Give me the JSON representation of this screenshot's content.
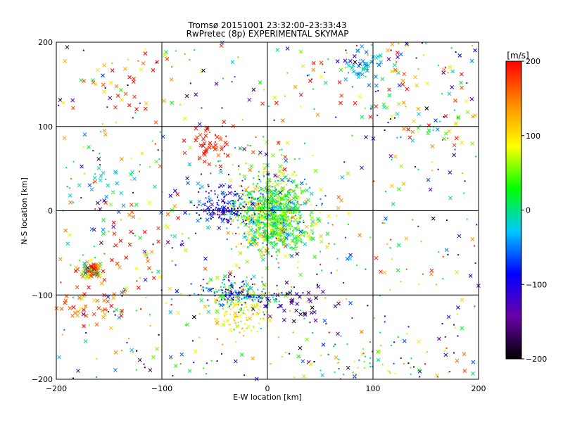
{
  "chart_data": {
    "type": "scatter",
    "title": "Tromsø 20151001 23:32:00–23:33:43",
    "subtitle": "RwPretec (8p) EXPERIMENTAL SKYMAP",
    "xlabel": "E-W location [km]",
    "ylabel": "N-S location [km]",
    "xlim": [
      -200,
      200
    ],
    "ylim": [
      -200,
      200
    ],
    "x_ticks": [
      -200,
      -100,
      0,
      100,
      200
    ],
    "y_ticks": [
      -200,
      -100,
      0,
      100,
      200
    ],
    "x_tick_labels": [
      "−200",
      "−100",
      "0",
      "100",
      "200"
    ],
    "y_tick_labels": [
      "−200",
      "−100",
      "0",
      "100",
      "200"
    ],
    "grid": true,
    "colorbar": {
      "label": "[m/s]",
      "min": -200,
      "max": 200,
      "ticks": [
        200,
        100,
        0,
        -100,
        -200
      ],
      "tick_labels": [
        "200",
        "100",
        "0",
        "−100",
        "−200"
      ],
      "colors": [
        "#000000",
        "#6a00a8",
        "#0000ff",
        "#00c8ff",
        "#00ff00",
        "#ffff00",
        "#ff8c00",
        "#ff0000"
      ]
    },
    "clusters": [
      {
        "x": 5,
        "y": 0,
        "sx": 15,
        "sy": 22,
        "n": 900,
        "v": 30,
        "sv": 55,
        "marker": "dot"
      },
      {
        "x": 12,
        "y": -15,
        "sx": 22,
        "sy": 22,
        "n": 160,
        "v": 40,
        "sv": 45,
        "marker": "x"
      },
      {
        "x": -45,
        "y": 5,
        "sx": 15,
        "sy": 15,
        "n": 160,
        "v": -100,
        "sv": 40,
        "marker": "dot"
      },
      {
        "x": -30,
        "y": -97,
        "sx": 18,
        "sy": 8,
        "n": 220,
        "v": -40,
        "sv": 80,
        "marker": "dot"
      },
      {
        "x": -22,
        "y": -120,
        "sx": 15,
        "sy": 15,
        "n": 120,
        "v": 90,
        "sv": 30,
        "marker": "dot"
      },
      {
        "x": -167,
        "y": -70,
        "sx": 5,
        "sy": 5,
        "n": 110,
        "v": 120,
        "sv": 90,
        "marker": "x"
      },
      {
        "x": -170,
        "y": -110,
        "sx": 20,
        "sy": 12,
        "n": 45,
        "v": 170,
        "sv": 40,
        "marker": "x"
      },
      {
        "x": -55,
        "y": 80,
        "sx": 12,
        "sy": 12,
        "n": 40,
        "v": 190,
        "sv": 15,
        "marker": "x"
      },
      {
        "x": 95,
        "y": 175,
        "sx": 15,
        "sy": 10,
        "n": 50,
        "v": -40,
        "sv": 35,
        "marker": "x"
      },
      {
        "x": 165,
        "y": 110,
        "sx": 30,
        "sy": 15,
        "n": 40,
        "v": 80,
        "sv": 100,
        "marker": "x"
      },
      {
        "x": 30,
        "y": -110,
        "sx": 15,
        "sy": 12,
        "n": 35,
        "v": -150,
        "sv": 30,
        "marker": "x"
      },
      {
        "x": -160,
        "y": 30,
        "sx": 20,
        "sy": 15,
        "n": 25,
        "v": -20,
        "sv": 20,
        "marker": "x"
      },
      {
        "x": 95,
        "y": -180,
        "sx": 30,
        "sy": 15,
        "n": 45,
        "v": 30,
        "sv": 70,
        "marker": "dot"
      },
      {
        "x": 105,
        "y": 150,
        "sx": 50,
        "sy": 30,
        "n": 40,
        "v": 120,
        "sv": 100,
        "marker": "x"
      },
      {
        "x": -130,
        "y": 150,
        "sx": 30,
        "sy": 30,
        "n": 35,
        "v": 170,
        "sv": 50,
        "marker": "x"
      },
      {
        "x": -110,
        "y": -40,
        "sx": 25,
        "sy": 40,
        "n": 40,
        "v": 150,
        "sv": 60,
        "marker": "x"
      }
    ],
    "background_points": 650
  }
}
